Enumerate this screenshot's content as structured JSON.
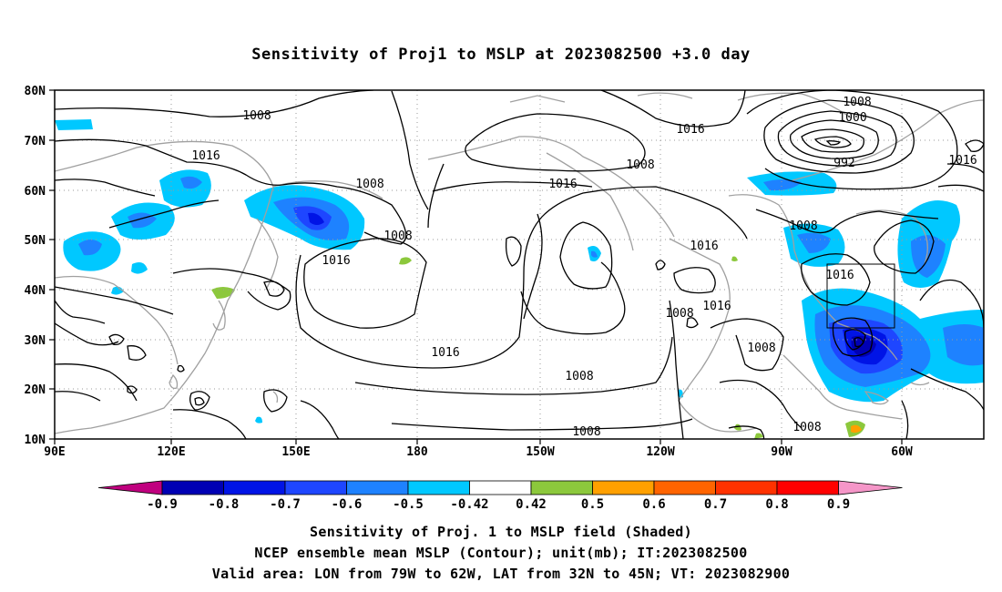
{
  "title": "Sensitivity of Proj1 to MSLP at 2023082500 +3.0 day",
  "map": {
    "lat_labels": [
      "80N",
      "70N",
      "60N",
      "50N",
      "40N",
      "30N",
      "20N",
      "10N"
    ],
    "lon_labels": [
      "90E",
      "120E",
      "150E",
      "180",
      "150W",
      "120W",
      "90W",
      "60W"
    ],
    "isobar_labels": [
      "1008",
      "1016",
      "1016",
      "1008",
      "1016",
      "1008",
      "1016",
      "1008",
      "1008",
      "1000",
      "992",
      "1016",
      "1008",
      "1016",
      "1016",
      "1008",
      "1016",
      "1016",
      "1008",
      "1008",
      "1008",
      "1008"
    ],
    "colors": {
      "coast": "#a0a0a0",
      "contour": "#000000",
      "grid": "#9a9a9a"
    }
  },
  "colorbar": {
    "ticks": [
      "-0.9",
      "-0.8",
      "-0.7",
      "-0.6",
      "-0.5",
      "-0.42",
      "0.42",
      "0.5",
      "0.6",
      "0.7",
      "0.8",
      "0.9"
    ],
    "colors": [
      "#c0007f",
      "#0000b4",
      "#0014e6",
      "#1e46ff",
      "#1e82ff",
      "#00c8ff",
      "#ffffff",
      "#8cc83c",
      "#ffa000",
      "#ff6400",
      "#ff3200",
      "#ff0000",
      "#f596c8"
    ]
  },
  "captions": {
    "line1": "Sensitivity of Proj. 1 to MSLP field (Shaded)",
    "line2": "NCEP ensemble mean MSLP (Contour); unit(mb); IT:2023082500",
    "line3": "Valid area: LON from 79W to 62W, LAT from 32N to 45N; VT: 2023082900"
  }
}
